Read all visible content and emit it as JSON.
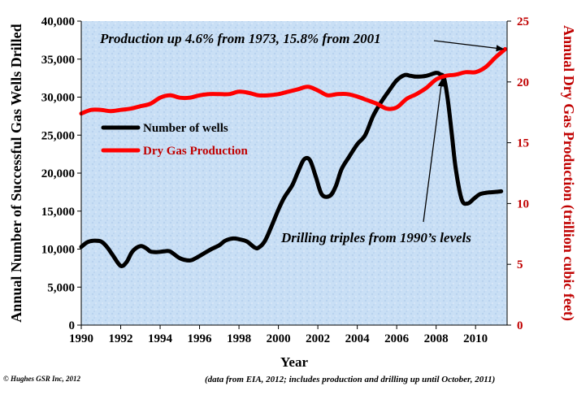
{
  "chart_data": {
    "type": "line",
    "xlabel": "Year",
    "ylabel_left": "Annual Number of Successful Gas Wells Drilled",
    "ylabel_right": "Annual Dry Gas Production (trillion cubic feet)",
    "xlim": [
      1990,
      2011.6
    ],
    "ylim_left": [
      0,
      40000
    ],
    "ylim_right": [
      0,
      25
    ],
    "x_ticks": [
      "1990",
      "1992",
      "1994",
      "1996",
      "1998",
      "2000",
      "2002",
      "2004",
      "2006",
      "2008",
      "2010"
    ],
    "x_tick_values": [
      1990,
      1992,
      1994,
      1996,
      1998,
      2000,
      2002,
      2004,
      2006,
      2008,
      2010
    ],
    "y_left_ticks": [
      "0",
      "5,000",
      "10,000",
      "15,000",
      "20,000",
      "25,000",
      "30,000",
      "35,000",
      "40,000"
    ],
    "y_left_tick_values": [
      0,
      5000,
      10000,
      15000,
      20000,
      25000,
      30000,
      35000,
      40000
    ],
    "y_right_ticks": [
      "0",
      "5",
      "10",
      "15",
      "20",
      "25"
    ],
    "y_right_tick_values": [
      0,
      5,
      10,
      15,
      20,
      25
    ],
    "legend": "upper-left",
    "grid": false,
    "series": [
      {
        "name": "Number of wells",
        "axis": "left",
        "color": "#000000",
        "x": [
          1990,
          1990.3,
          1990.6,
          1991,
          1991.3,
          1991.6,
          1992,
          1992.3,
          1992.6,
          1993,
          1993.3,
          1993.5,
          1993.8,
          1994.2,
          1994.5,
          1995,
          1995.5,
          1995.8,
          1996.2,
          1996.6,
          1997,
          1997.3,
          1997.7,
          1998,
          1998.4,
          1998.8,
          1999,
          1999.3,
          1999.6,
          2000,
          2000.3,
          2000.7,
          2001,
          2001.3,
          2001.6,
          2001.9,
          2002.2,
          2002.6,
          2002.9,
          2003.2,
          2003.6,
          2004,
          2004.4,
          2004.8,
          2005.2,
          2005.6,
          2006,
          2006.4,
          2006.7,
          2007,
          2007.5,
          2008,
          2008.2,
          2008.4,
          2008.6,
          2008.8,
          2009,
          2009.3,
          2009.6,
          2009.9,
          2010.2,
          2010.5,
          2010.9,
          2011.3
        ],
        "values": [
          10300,
          10900,
          11100,
          11000,
          10300,
          9200,
          7800,
          8300,
          9700,
          10400,
          10100,
          9700,
          9600,
          9700,
          9700,
          8800,
          8500,
          8800,
          9400,
          10000,
          10500,
          11100,
          11400,
          11300,
          11000,
          10200,
          10200,
          11000,
          12700,
          15200,
          16800,
          18400,
          20200,
          21800,
          21700,
          19500,
          17200,
          17000,
          18200,
          20500,
          22200,
          23800,
          25000,
          27500,
          29300,
          30800,
          32200,
          32900,
          32800,
          32700,
          32800,
          33200,
          33000,
          32500,
          29500,
          25000,
          20500,
          16500,
          16000,
          16600,
          17200,
          17400,
          17500,
          17600
        ]
      },
      {
        "name": "Dry Gas Production",
        "axis": "right",
        "color": "#ff0000",
        "x": [
          1990,
          1990.5,
          1991,
          1991.5,
          1992,
          1992.5,
          1993,
          1993.5,
          1994,
          1994.5,
          1995,
          1995.5,
          1996,
          1996.5,
          1997,
          1997.5,
          1998,
          1998.5,
          1999,
          1999.5,
          2000,
          2000.5,
          2001,
          2001.5,
          2002,
          2002.5,
          2003,
          2003.5,
          2004,
          2004.5,
          2005,
          2005.5,
          2006,
          2006.5,
          2007,
          2007.5,
          2008,
          2008.5,
          2009,
          2009.5,
          2010,
          2010.5,
          2011,
          2011.5
        ],
        "values": [
          17.4,
          17.7,
          17.7,
          17.6,
          17.7,
          17.8,
          18.0,
          18.2,
          18.7,
          18.9,
          18.7,
          18.7,
          18.9,
          19.0,
          19.0,
          19.0,
          19.2,
          19.1,
          18.9,
          18.9,
          19.0,
          19.2,
          19.4,
          19.6,
          19.3,
          18.9,
          19.0,
          19.0,
          18.8,
          18.5,
          18.2,
          17.8,
          17.9,
          18.6,
          19.0,
          19.5,
          20.2,
          20.5,
          20.6,
          20.8,
          20.8,
          21.2,
          22.0,
          22.7
        ]
      }
    ],
    "annotations": [
      {
        "text": "Production up 4.6% from 1973, 15.8% from 2001",
        "target": [
          2011.5,
          22.7
        ],
        "axis": "right"
      },
      {
        "text": "Drilling triples from 1990’s levels",
        "target": [
          2008.3,
          32800
        ],
        "axis": "left"
      }
    ]
  },
  "footer": {
    "copyright": "© Hughes GSR Inc, 2012",
    "source_note": "(data from EIA, 2012; includes production and drilling up until October, 2011)"
  }
}
